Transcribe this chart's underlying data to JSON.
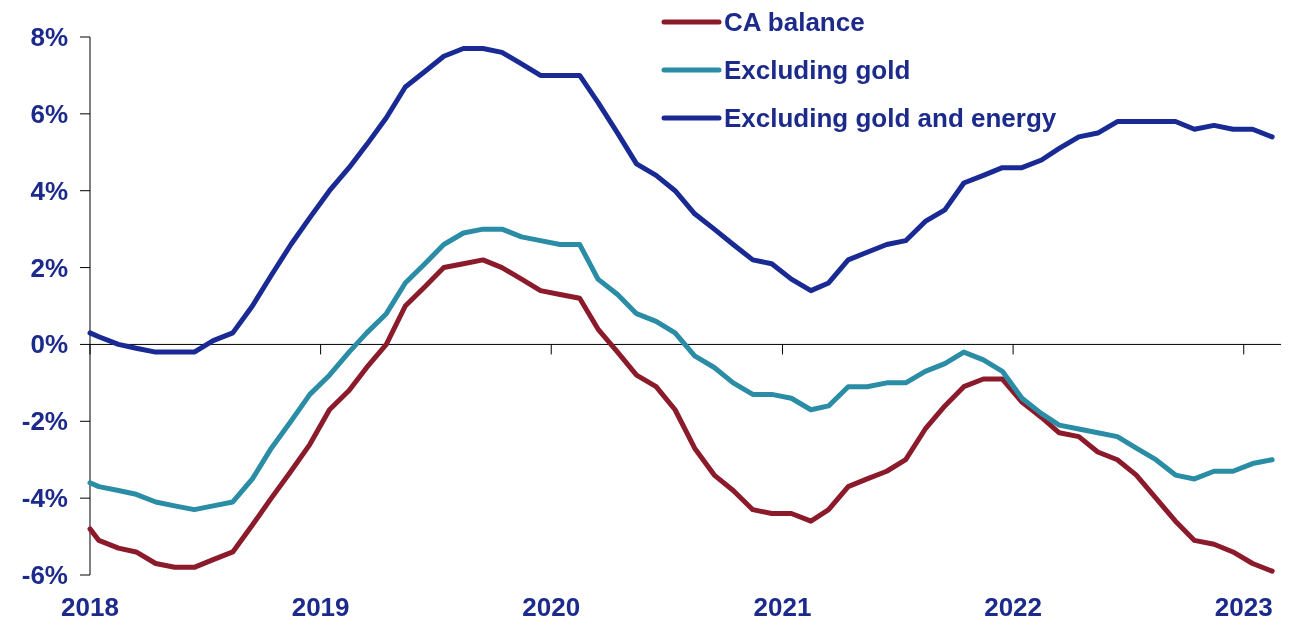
{
  "chart_data": {
    "type": "line",
    "x": [
      "2018-01-01",
      "2018-01-15",
      "2018-02-15",
      "2018-03-15",
      "2018-04-15",
      "2018-05-15",
      "2018-06-15",
      "2018-07-15",
      "2018-08-15",
      "2018-09-15",
      "2018-10-15",
      "2018-11-15",
      "2018-12-15",
      "2019-01-15",
      "2019-02-15",
      "2019-03-15",
      "2019-04-15",
      "2019-05-15",
      "2019-06-15",
      "2019-07-15",
      "2019-08-15",
      "2019-09-15",
      "2019-10-15",
      "2019-11-15",
      "2019-12-15",
      "2020-01-15",
      "2020-02-15",
      "2020-03-15",
      "2020-04-15",
      "2020-05-15",
      "2020-06-15",
      "2020-07-15",
      "2020-08-15",
      "2020-09-15",
      "2020-10-15",
      "2020-11-15",
      "2020-12-15",
      "2021-01-15",
      "2021-02-15",
      "2021-03-15",
      "2021-04-15",
      "2021-05-15",
      "2021-06-15",
      "2021-07-15",
      "2021-08-15",
      "2021-09-15",
      "2021-10-15",
      "2021-11-15",
      "2021-12-15",
      "2022-01-15",
      "2022-02-15",
      "2022-03-15",
      "2022-04-15",
      "2022-05-15",
      "2022-06-15",
      "2022-07-15",
      "2022-08-15",
      "2022-09-15",
      "2022-10-15",
      "2022-11-15",
      "2022-12-15",
      "2023-01-15",
      "2023-02-15"
    ],
    "series": [
      {
        "name": "CA balance",
        "color": "#8b1a2b",
        "values": [
          -4.8,
          -5.1,
          -5.3,
          -5.4,
          -5.7,
          -5.8,
          -5.8,
          -5.6,
          -5.4,
          -4.7,
          -4.0,
          -3.3,
          -2.6,
          -1.7,
          -1.2,
          -0.6,
          0.0,
          1.0,
          1.5,
          2.0,
          2.1,
          2.2,
          2.0,
          1.7,
          1.4,
          1.3,
          1.2,
          0.4,
          -0.2,
          -0.8,
          -1.1,
          -1.7,
          -2.7,
          -3.4,
          -3.8,
          -4.3,
          -4.4,
          -4.4,
          -4.6,
          -4.3,
          -3.7,
          -3.5,
          -3.3,
          -3.0,
          -2.2,
          -1.6,
          -1.1,
          -0.9,
          -0.9,
          -1.5,
          -1.9,
          -2.3,
          -2.4,
          -2.8,
          -3.0,
          -3.4,
          -4.0,
          -4.6,
          -5.1,
          -5.2,
          -5.4,
          -5.7,
          -5.9
        ]
      },
      {
        "name": "Excluding gold",
        "color": "#2a8ca5",
        "values": [
          -3.6,
          -3.7,
          -3.8,
          -3.9,
          -4.1,
          -4.2,
          -4.3,
          -4.2,
          -4.1,
          -3.5,
          -2.7,
          -2.0,
          -1.3,
          -0.8,
          -0.2,
          0.3,
          0.8,
          1.6,
          2.1,
          2.6,
          2.9,
          3.0,
          3.0,
          2.8,
          2.7,
          2.6,
          2.6,
          1.7,
          1.3,
          0.8,
          0.6,
          0.3,
          -0.3,
          -0.6,
          -1.0,
          -1.3,
          -1.3,
          -1.4,
          -1.7,
          -1.6,
          -1.1,
          -1.1,
          -1.0,
          -1.0,
          -0.7,
          -0.5,
          -0.2,
          -0.4,
          -0.7,
          -1.4,
          -1.8,
          -2.1,
          -2.2,
          -2.3,
          -2.4,
          -2.7,
          -3.0,
          -3.4,
          -3.5,
          -3.3,
          -3.3,
          -3.1,
          -3.0
        ]
      },
      {
        "name": "Excluding gold and energy",
        "color": "#1a2a94",
        "values": [
          0.3,
          0.2,
          0.0,
          -0.1,
          -0.2,
          -0.2,
          -0.2,
          0.1,
          0.3,
          1.0,
          1.8,
          2.6,
          3.3,
          4.0,
          4.6,
          5.2,
          5.9,
          6.7,
          7.1,
          7.5,
          7.7,
          7.7,
          7.6,
          7.3,
          7.0,
          7.0,
          7.0,
          6.3,
          5.5,
          4.7,
          4.4,
          4.0,
          3.4,
          3.0,
          2.6,
          2.2,
          2.1,
          1.7,
          1.4,
          1.6,
          2.2,
          2.4,
          2.6,
          2.7,
          3.2,
          3.5,
          4.2,
          4.4,
          4.6,
          4.6,
          4.8,
          5.1,
          5.4,
          5.5,
          5.8,
          5.8,
          5.8,
          5.8,
          5.6,
          5.7,
          5.6,
          5.6,
          5.4
        ]
      }
    ],
    "xlim": [
      "2018-01-01",
      "2023-03-01"
    ],
    "xticks": [
      "2018",
      "2019",
      "2020",
      "2021",
      "2022",
      "2023"
    ],
    "ylim": [
      -6,
      8
    ],
    "yticks": [
      {
        "value": -6,
        "label": "-6%"
      },
      {
        "value": -4,
        "label": "-4%"
      },
      {
        "value": -2,
        "label": "-2%"
      },
      {
        "value": 0,
        "label": "0%"
      },
      {
        "value": 2,
        "label": "2%"
      },
      {
        "value": 4,
        "label": "4%"
      },
      {
        "value": 6,
        "label": "6%"
      },
      {
        "value": 8,
        "label": "8%"
      }
    ],
    "legend": "top right",
    "marker": "none",
    "line_style": "solid"
  }
}
